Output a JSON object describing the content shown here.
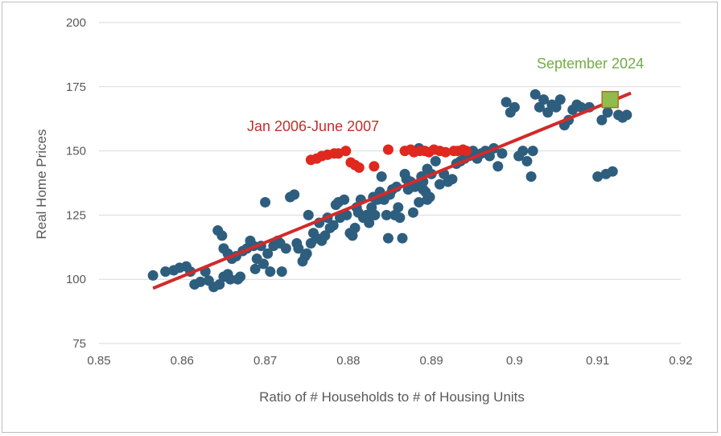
{
  "chart_data": {
    "type": "scatter",
    "xlabel": "Ratio of # Households to # of Housing Units",
    "ylabel": "Real Home Prices",
    "xlim": [
      0.85,
      0.92
    ],
    "ylim": [
      75,
      200
    ],
    "xticks": [
      "0.85",
      "0.86",
      "0.87",
      "0.88",
      "0.89",
      "0.9",
      "0.91",
      "0.92"
    ],
    "yticks": [
      "75",
      "100",
      "125",
      "150",
      "175",
      "200"
    ],
    "grid": "horizontal",
    "colors": {
      "points": "#2e5e7e",
      "highlight": "#e0281e",
      "trend": "#d32a2a",
      "latest_fill": "#8fbc4a",
      "latest_label": "#70ad47",
      "highlight_label": "#c0302a"
    },
    "annotations": {
      "highlight_label": "Jan 2006-June 2007",
      "latest_label": "September 2024"
    },
    "trendline": {
      "x": [
        0.8565,
        0.914
      ],
      "y": [
        96.5,
        172.5
      ]
    },
    "latest_point": {
      "x": 0.9115,
      "y": 170
    },
    "highlight_points": [
      [
        0.8755,
        146.5
      ],
      [
        0.8762,
        147
      ],
      [
        0.8768,
        148
      ],
      [
        0.8775,
        148.5
      ],
      [
        0.8783,
        149
      ],
      [
        0.8788,
        149
      ],
      [
        0.8797,
        150
      ],
      [
        0.8803,
        145.5
      ],
      [
        0.8808,
        144.5
      ],
      [
        0.8813,
        143.5
      ],
      [
        0.8831,
        144
      ],
      [
        0.8848,
        150.5
      ],
      [
        0.8868,
        150
      ],
      [
        0.8875,
        150.5
      ],
      [
        0.8879,
        149.5
      ],
      [
        0.8886,
        150
      ],
      [
        0.8892,
        150
      ],
      [
        0.8897,
        149.5
      ],
      [
        0.8903,
        150.5
      ],
      [
        0.891,
        150
      ],
      [
        0.8917,
        149.5
      ],
      [
        0.8927,
        150
      ],
      [
        0.8932,
        150
      ],
      [
        0.8938,
        150.5
      ],
      [
        0.8942,
        150
      ]
    ],
    "points": [
      [
        0.8565,
        101.5
      ],
      [
        0.858,
        103
      ],
      [
        0.859,
        103.5
      ],
      [
        0.8597,
        104.5
      ],
      [
        0.8605,
        105
      ],
      [
        0.861,
        103
      ],
      [
        0.8615,
        98
      ],
      [
        0.8622,
        99
      ],
      [
        0.8628,
        103
      ],
      [
        0.8632,
        99.5
      ],
      [
        0.8638,
        97
      ],
      [
        0.8645,
        98
      ],
      [
        0.865,
        101
      ],
      [
        0.8655,
        102
      ],
      [
        0.8658,
        100
      ],
      [
        0.8643,
        119
      ],
      [
        0.8648,
        117
      ],
      [
        0.865,
        112
      ],
      [
        0.8655,
        110
      ],
      [
        0.866,
        108
      ],
      [
        0.8665,
        109
      ],
      [
        0.8667,
        100
      ],
      [
        0.867,
        101
      ],
      [
        0.8673,
        111
      ],
      [
        0.8678,
        112
      ],
      [
        0.8682,
        115
      ],
      [
        0.8686,
        113
      ],
      [
        0.8688,
        104
      ],
      [
        0.869,
        108
      ],
      [
        0.8695,
        113
      ],
      [
        0.8698,
        106
      ],
      [
        0.87,
        130
      ],
      [
        0.8703,
        110
      ],
      [
        0.8706,
        103
      ],
      [
        0.871,
        113
      ],
      [
        0.8715,
        115
      ],
      [
        0.8718,
        114
      ],
      [
        0.872,
        103
      ],
      [
        0.8725,
        112
      ],
      [
        0.873,
        132
      ],
      [
        0.8735,
        133
      ],
      [
        0.8738,
        114
      ],
      [
        0.874,
        112
      ],
      [
        0.8745,
        107
      ],
      [
        0.8748,
        109
      ],
      [
        0.875,
        110
      ],
      [
        0.8752,
        125
      ],
      [
        0.8755,
        114
      ],
      [
        0.8758,
        118
      ],
      [
        0.8762,
        116
      ],
      [
        0.8765,
        122
      ],
      [
        0.8768,
        115
      ],
      [
        0.8772,
        117
      ],
      [
        0.8775,
        124
      ],
      [
        0.8778,
        120
      ],
      [
        0.8782,
        121
      ],
      [
        0.8785,
        129
      ],
      [
        0.8788,
        130
      ],
      [
        0.879,
        124
      ],
      [
        0.8795,
        131
      ],
      [
        0.8798,
        125
      ],
      [
        0.8802,
        118
      ],
      [
        0.8805,
        117
      ],
      [
        0.8808,
        120
      ],
      [
        0.881,
        128
      ],
      [
        0.8812,
        126
      ],
      [
        0.8815,
        131
      ],
      [
        0.8818,
        124
      ],
      [
        0.8822,
        125
      ],
      [
        0.8825,
        122
      ],
      [
        0.8828,
        128
      ],
      [
        0.883,
        132
      ],
      [
        0.8832,
        125
      ],
      [
        0.8835,
        131
      ],
      [
        0.8838,
        134
      ],
      [
        0.884,
        140
      ],
      [
        0.8843,
        131
      ],
      [
        0.8846,
        125
      ],
      [
        0.8848,
        116
      ],
      [
        0.885,
        133
      ],
      [
        0.8853,
        135
      ],
      [
        0.8856,
        125
      ],
      [
        0.8858,
        136
      ],
      [
        0.886,
        128
      ],
      [
        0.8862,
        124
      ],
      [
        0.8865,
        116
      ],
      [
        0.8868,
        141
      ],
      [
        0.887,
        139
      ],
      [
        0.8872,
        135
      ],
      [
        0.8875,
        138
      ],
      [
        0.8878,
        126
      ],
      [
        0.888,
        136
      ],
      [
        0.8883,
        137
      ],
      [
        0.8885,
        151
      ],
      [
        0.8888,
        140
      ],
      [
        0.889,
        135
      ],
      [
        0.8893,
        134
      ],
      [
        0.8895,
        131
      ],
      [
        0.8898,
        132
      ],
      [
        0.89,
        141
      ],
      [
        0.8905,
        146
      ],
      [
        0.891,
        137
      ],
      [
        0.8915,
        141
      ],
      [
        0.892,
        138
      ],
      [
        0.8925,
        139
      ],
      [
        0.8885,
        130
      ],
      [
        0.889,
        138
      ],
      [
        0.8895,
        143
      ],
      [
        0.893,
        145
      ],
      [
        0.8935,
        146
      ],
      [
        0.894,
        147
      ],
      [
        0.8945,
        148
      ],
      [
        0.895,
        150
      ],
      [
        0.8955,
        147
      ],
      [
        0.896,
        149
      ],
      [
        0.8965,
        150
      ],
      [
        0.897,
        148
      ],
      [
        0.8975,
        151
      ],
      [
        0.898,
        144
      ],
      [
        0.8985,
        149
      ],
      [
        0.899,
        169
      ],
      [
        0.8995,
        165
      ],
      [
        0.9,
        167
      ],
      [
        0.9005,
        148
      ],
      [
        0.901,
        150
      ],
      [
        0.9015,
        146
      ],
      [
        0.902,
        140
      ],
      [
        0.9022,
        150
      ],
      [
        0.9025,
        172
      ],
      [
        0.903,
        167
      ],
      [
        0.9035,
        170
      ],
      [
        0.904,
        165
      ],
      [
        0.9045,
        168
      ],
      [
        0.905,
        167
      ],
      [
        0.9055,
        170
      ],
      [
        0.906,
        160
      ],
      [
        0.9065,
        162
      ],
      [
        0.907,
        166
      ],
      [
        0.9075,
        168
      ],
      [
        0.908,
        167
      ],
      [
        0.909,
        167
      ],
      [
        0.91,
        140
      ],
      [
        0.9105,
        162
      ],
      [
        0.911,
        141
      ],
      [
        0.9112,
        165
      ],
      [
        0.9118,
        142
      ],
      [
        0.9125,
        164
      ],
      [
        0.913,
        163
      ],
      [
        0.9135,
        164
      ]
    ]
  }
}
